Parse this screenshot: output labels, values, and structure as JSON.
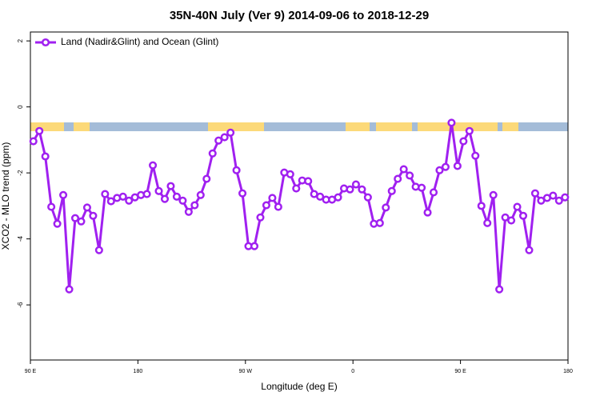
{
  "chart_data": {
    "type": "line",
    "title": "35N-40N July (Ver 9)   2014-09-06 to 2018-12-29",
    "x_label": "Longitude (deg E)",
    "y_label": "XCO2 - MLO trend (ppm)",
    "xlim": [
      90,
      540
    ],
    "xticks": [
      {
        "value": 90,
        "label": "90 E"
      },
      {
        "value": 180,
        "label": "180"
      },
      {
        "value": 270,
        "label": "90 W"
      },
      {
        "value": 360,
        "label": "0"
      },
      {
        "value": 450,
        "label": "90 E"
      },
      {
        "value": 540,
        "label": "180"
      }
    ],
    "ylim": [
      -7.67,
      2.27
    ],
    "yticks": [
      2,
      0,
      -2,
      -4,
      -6
    ],
    "legend": "top-left",
    "x": [
      92.5,
      97.5,
      102.5,
      107.5,
      112.5,
      117.5,
      122.5,
      127.5,
      132.5,
      137.5,
      142.5,
      147.5,
      152.5,
      157.5,
      162.5,
      167.5,
      172.5,
      177.5,
      182.5,
      187.5,
      192.5,
      197.5,
      202.5,
      207.5,
      212.5,
      217.5,
      222.5,
      227.5,
      232.5,
      237.5,
      242.5,
      247.5,
      252.5,
      257.5,
      262.5,
      267.5,
      272.5,
      277.5,
      282.5,
      287.5,
      292.5,
      297.5,
      302.5,
      307.5,
      312.5,
      317.5,
      322.5,
      327.5,
      332.5,
      337.5,
      342.5,
      347.5,
      352.5,
      357.5,
      362.5,
      367.5,
      372.5,
      377.5,
      382.5,
      387.5,
      392.5,
      397.5,
      402.5,
      407.5,
      412.5,
      417.5,
      422.5,
      427.5,
      432.5,
      437.5,
      442.5,
      447.5,
      452.5,
      457.5,
      462.5,
      467.5,
      472.5,
      477.5,
      482.5,
      487.5,
      492.5,
      497.5,
      502.5,
      507.5,
      512.5,
      517.5,
      522.5,
      527.5,
      532.5,
      537.5
    ],
    "series": [
      {
        "name": "Land (Nadir&Glint) and Ocean (Glint)",
        "color": "#a020f0",
        "values": [
          -1.04,
          -0.73,
          -1.5,
          -3.03,
          -3.54,
          -2.67,
          -5.53,
          -3.37,
          -3.47,
          -3.05,
          -3.3,
          -4.34,
          -2.64,
          -2.86,
          -2.76,
          -2.72,
          -2.84,
          -2.74,
          -2.67,
          -2.64,
          -1.77,
          -2.55,
          -2.79,
          -2.4,
          -2.72,
          -2.84,
          -3.18,
          -2.98,
          -2.67,
          -2.18,
          -1.41,
          -1.02,
          -0.92,
          -0.78,
          -1.92,
          -2.62,
          -4.22,
          -4.22,
          -3.35,
          -2.98,
          -2.76,
          -3.03,
          -1.99,
          -2.04,
          -2.47,
          -2.23,
          -2.25,
          -2.64,
          -2.72,
          -2.81,
          -2.81,
          -2.74,
          -2.47,
          -2.5,
          -2.35,
          -2.5,
          -2.74,
          -3.54,
          -3.52,
          -3.05,
          -2.55,
          -2.18,
          -1.89,
          -2.08,
          -2.42,
          -2.45,
          -3.2,
          -2.59,
          -1.92,
          -1.82,
          -0.48,
          -1.79,
          -1.04,
          -0.73,
          -1.48,
          -3.0,
          -3.52,
          -2.67,
          -5.53,
          -3.35,
          -3.44,
          -3.03,
          -3.3,
          -4.34,
          -2.62,
          -2.84,
          -2.76,
          -2.69,
          -2.84,
          -2.74
        ]
      }
    ]
  }
}
